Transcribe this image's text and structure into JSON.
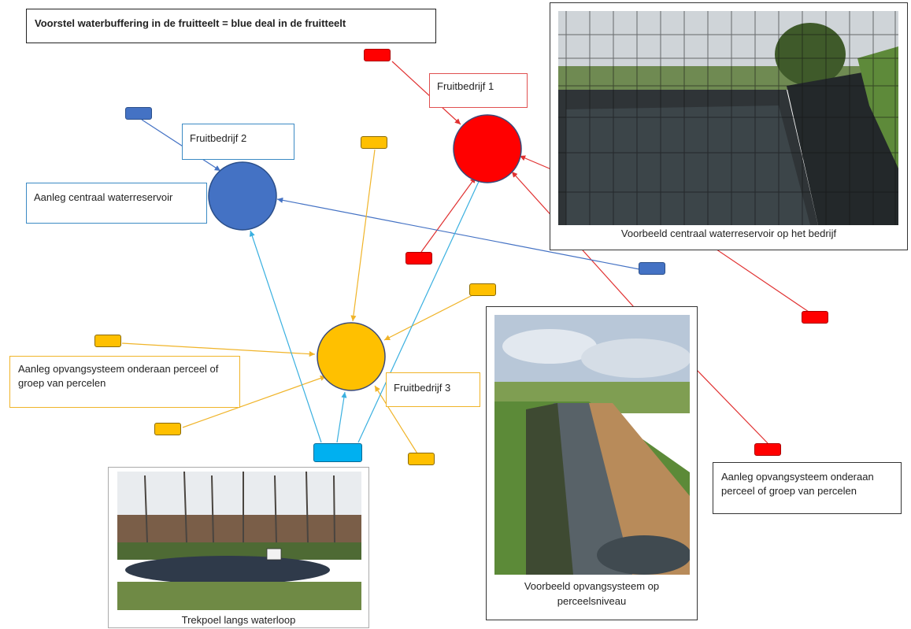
{
  "title": "Voorstel waterbuffering in de fruitteelt = blue deal in de fruitteelt",
  "labels": {
    "fruitbedrijf1": "Fruitbedrijf 1",
    "fruitbedrijf2": "Fruitbedrijf 2",
    "fruitbedrijf3": "Fruitbedrijf 3",
    "centraal": "Aanleg centraal waterreservoir",
    "opvang_left": "Aanleg opvangsysteem onderaan perceel of groep van percelen",
    "opvang_right": "Aanleg opvangsysteem onderaan perceel of groep van percelen"
  },
  "captions": {
    "reservoir": "Voorbeeld centraal waterreservoir op het bedrijf",
    "opvang": "Voorbeeld opvangsysteem op perceelsniveau",
    "trekpoel": "Trekpoel langs waterloop"
  },
  "colors": {
    "red": "#ff0000",
    "blue": "#4472c4",
    "yellow": "#ffc000",
    "cyan": "#00b0f0"
  }
}
